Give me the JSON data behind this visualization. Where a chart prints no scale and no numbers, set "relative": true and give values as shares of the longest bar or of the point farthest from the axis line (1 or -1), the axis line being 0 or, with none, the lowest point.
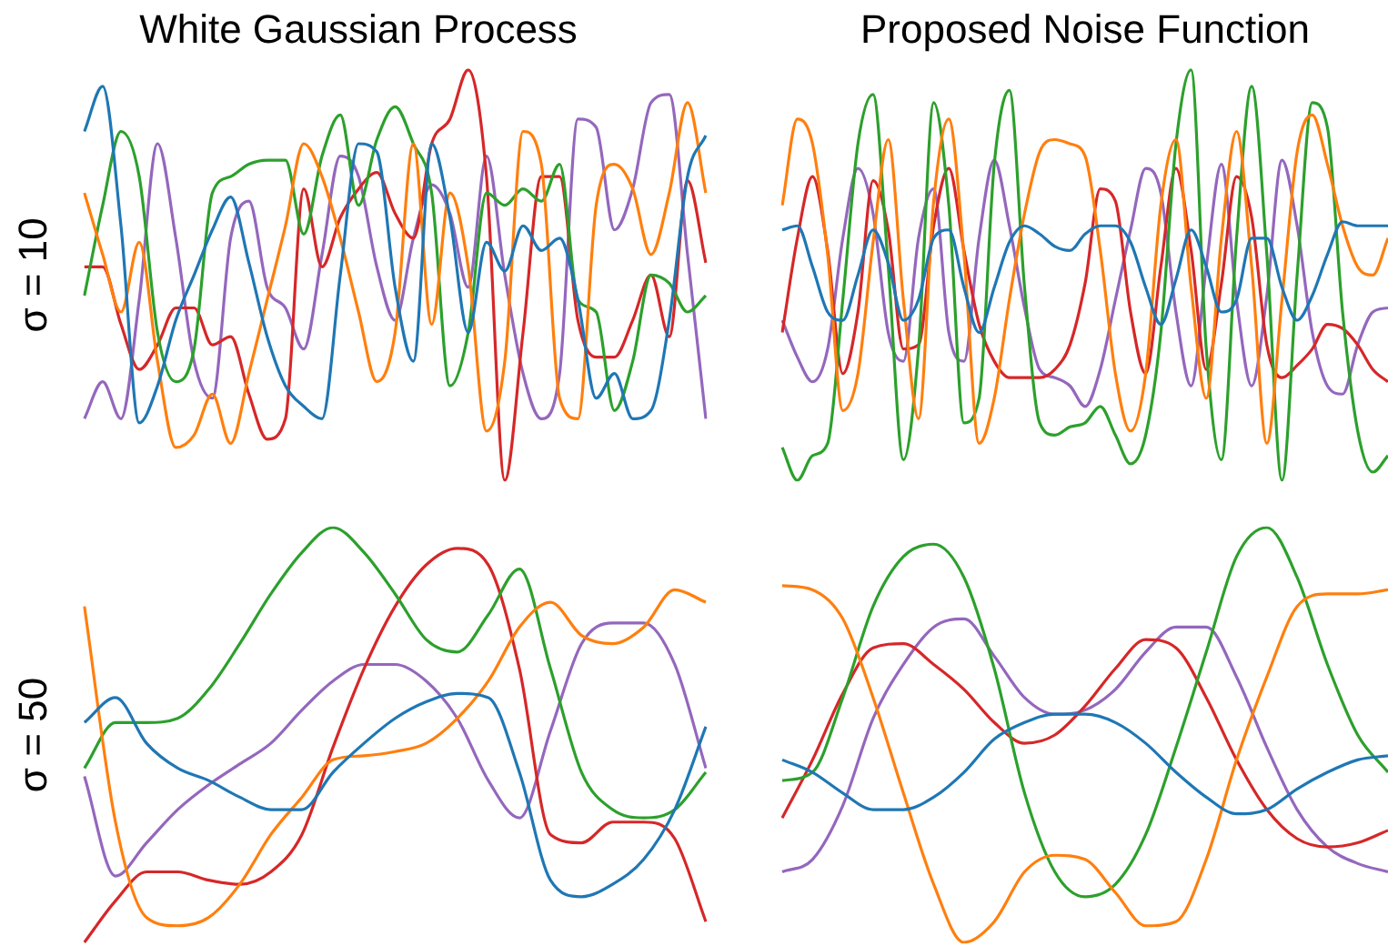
{
  "chart_data": [
    {
      "type": "line",
      "title": "White Gaussian Process",
      "ylabel": "σ = 10",
      "relative": true,
      "categories": [
        null,
        null,
        null,
        null,
        null,
        null,
        null,
        null,
        null,
        null,
        null,
        null,
        null,
        null,
        null,
        null,
        null,
        null,
        null,
        null,
        null,
        null,
        null,
        null,
        null,
        null,
        null,
        null,
        null,
        null,
        null,
        null,
        null,
        null,
        null
      ],
      "series": [
        {
          "color": "#1f77b4",
          "values": [
            0.85,
            0.96,
            0.62,
            0.14,
            0.23,
            0.39,
            0.5,
            0.61,
            0.69,
            0.53,
            0.35,
            0.23,
            0.18,
            0.15,
            0.5,
            0.82,
            0.8,
            0.47,
            0.29,
            0.82,
            0.64,
            0.36,
            0.58,
            0.51,
            0.62,
            0.56,
            0.59,
            0.44,
            0.2,
            0.26,
            0.15,
            0.17,
            0.39,
            0.74,
            0.84
          ]
        },
        {
          "color": "#ff7f0e",
          "values": [
            0.7,
            0.55,
            0.41,
            0.58,
            0.29,
            0.08,
            0.11,
            0.21,
            0.09,
            0.26,
            0.44,
            0.62,
            0.82,
            0.74,
            0.59,
            0.41,
            0.24,
            0.36,
            0.82,
            0.38,
            0.7,
            0.52,
            0.12,
            0.29,
            0.85,
            0.77,
            0.2,
            0.15,
            0.67,
            0.77,
            0.71,
            0.55,
            0.7,
            0.92,
            0.7
          ]
        },
        {
          "color": "#2ca02c",
          "values": [
            0.45,
            0.67,
            0.85,
            0.74,
            0.36,
            0.24,
            0.32,
            0.7,
            0.74,
            0.77,
            0.78,
            0.78,
            0.6,
            0.79,
            0.89,
            0.67,
            0.83,
            0.91,
            0.82,
            0.7,
            0.23,
            0.36,
            0.7,
            0.67,
            0.71,
            0.68,
            0.77,
            0.44,
            0.41,
            0.17,
            0.29,
            0.5,
            0.48,
            0.41,
            0.45
          ]
        },
        {
          "color": "#d62728",
          "values": [
            0.52,
            0.52,
            0.38,
            0.27,
            0.33,
            0.42,
            0.42,
            0.33,
            0.35,
            0.21,
            0.1,
            0.15,
            0.71,
            0.52,
            0.64,
            0.71,
            0.75,
            0.65,
            0.59,
            0.82,
            0.88,
            1.0,
            0.74,
            0.0,
            0.36,
            0.74,
            0.74,
            0.39,
            0.3,
            0.3,
            0.39,
            0.5,
            0.35,
            0.73,
            0.53
          ]
        },
        {
          "color": "#9467bd",
          "values": [
            0.15,
            0.24,
            0.15,
            0.44,
            0.82,
            0.59,
            0.29,
            0.2,
            0.59,
            0.68,
            0.47,
            0.42,
            0.32,
            0.55,
            0.79,
            0.74,
            0.52,
            0.39,
            0.59,
            0.72,
            0.65,
            0.47,
            0.79,
            0.5,
            0.26,
            0.15,
            0.26,
            0.88,
            0.86,
            0.61,
            0.71,
            0.92,
            0.94,
            0.55,
            0.15
          ]
        }
      ]
    },
    {
      "type": "line",
      "title": "Proposed Noise Function",
      "relative": true,
      "categories": [
        null,
        null,
        null,
        null,
        null,
        null,
        null,
        null,
        null,
        null,
        null,
        null,
        null,
        null,
        null,
        null,
        null,
        null,
        null,
        null,
        null,
        null,
        null,
        null,
        null,
        null,
        null,
        null,
        null,
        null,
        null,
        null,
        null,
        null,
        null,
        null,
        null,
        null,
        null,
        null,
        null
      ],
      "series": [
        {
          "color": "#1f77b4",
          "values": [
            0.61,
            0.62,
            0.52,
            0.41,
            0.39,
            0.5,
            0.61,
            0.53,
            0.39,
            0.44,
            0.59,
            0.61,
            0.47,
            0.36,
            0.47,
            0.58,
            0.62,
            0.6,
            0.57,
            0.56,
            0.6,
            0.62,
            0.62,
            0.58,
            0.47,
            0.38,
            0.49,
            0.61,
            0.52,
            0.41,
            0.44,
            0.59,
            0.59,
            0.47,
            0.39,
            0.45,
            0.55,
            0.63,
            0.62,
            0.62,
            0.62
          ]
        },
        {
          "color": "#ff7f0e",
          "values": [
            0.67,
            0.88,
            0.82,
            0.55,
            0.17,
            0.26,
            0.58,
            0.83,
            0.44,
            0.15,
            0.68,
            0.88,
            0.55,
            0.09,
            0.2,
            0.44,
            0.65,
            0.8,
            0.83,
            0.82,
            0.79,
            0.56,
            0.26,
            0.12,
            0.26,
            0.67,
            0.83,
            0.47,
            0.2,
            0.59,
            0.85,
            0.52,
            0.09,
            0.44,
            0.8,
            0.89,
            0.77,
            0.62,
            0.52,
            0.5,
            0.59
          ]
        },
        {
          "color": "#2ca02c",
          "values": [
            0.08,
            0.0,
            0.06,
            0.09,
            0.44,
            0.82,
            0.94,
            0.52,
            0.05,
            0.32,
            0.92,
            0.67,
            0.14,
            0.2,
            0.77,
            0.95,
            0.47,
            0.14,
            0.11,
            0.13,
            0.14,
            0.18,
            0.11,
            0.04,
            0.11,
            0.36,
            0.82,
            1.0,
            0.32,
            0.05,
            0.59,
            0.96,
            0.55,
            0.0,
            0.5,
            0.92,
            0.86,
            0.41,
            0.12,
            0.02,
            0.06
          ]
        },
        {
          "color": "#d62728",
          "values": [
            0.36,
            0.59,
            0.74,
            0.56,
            0.26,
            0.41,
            0.73,
            0.61,
            0.32,
            0.33,
            0.62,
            0.76,
            0.56,
            0.38,
            0.29,
            0.25,
            0.25,
            0.25,
            0.27,
            0.33,
            0.48,
            0.71,
            0.68,
            0.41,
            0.26,
            0.52,
            0.76,
            0.56,
            0.27,
            0.48,
            0.74,
            0.64,
            0.33,
            0.25,
            0.28,
            0.32,
            0.38,
            0.37,
            0.33,
            0.27,
            0.24
          ]
        },
        {
          "color": "#9467bd",
          "values": [
            0.39,
            0.3,
            0.24,
            0.32,
            0.59,
            0.76,
            0.65,
            0.36,
            0.29,
            0.59,
            0.71,
            0.36,
            0.29,
            0.59,
            0.78,
            0.62,
            0.42,
            0.27,
            0.25,
            0.23,
            0.18,
            0.27,
            0.44,
            0.61,
            0.76,
            0.7,
            0.41,
            0.23,
            0.52,
            0.77,
            0.44,
            0.23,
            0.45,
            0.78,
            0.62,
            0.36,
            0.23,
            0.21,
            0.33,
            0.41,
            0.42
          ]
        }
      ]
    },
    {
      "type": "line",
      "ylabel": "σ = 50",
      "relative": true,
      "categories": [
        null,
        null,
        null,
        null,
        null,
        null,
        null,
        null,
        null,
        null,
        null,
        null,
        null,
        null,
        null,
        null,
        null,
        null,
        null,
        null,
        null
      ],
      "series": [
        {
          "color": "#1f77b4",
          "values": [
            0.53,
            0.59,
            0.48,
            0.42,
            0.39,
            0.35,
            0.32,
            0.32,
            0.41,
            0.48,
            0.54,
            0.58,
            0.6,
            0.59,
            0.41,
            0.15,
            0.11,
            0.14,
            0.2,
            0.32,
            0.52
          ]
        },
        {
          "color": "#ff7f0e",
          "values": [
            0.81,
            0.29,
            0.06,
            0.04,
            0.06,
            0.14,
            0.26,
            0.35,
            0.44,
            0.45,
            0.46,
            0.48,
            0.54,
            0.63,
            0.76,
            0.82,
            0.74,
            0.72,
            0.76,
            0.85,
            0.82
          ]
        },
        {
          "color": "#2ca02c",
          "values": [
            0.42,
            0.53,
            0.53,
            0.54,
            0.61,
            0.72,
            0.84,
            0.94,
            1.0,
            0.94,
            0.84,
            0.73,
            0.7,
            0.79,
            0.9,
            0.66,
            0.41,
            0.32,
            0.3,
            0.32,
            0.41
          ]
        },
        {
          "color": "#d62728",
          "values": [
            0.0,
            0.1,
            0.17,
            0.17,
            0.15,
            0.14,
            0.17,
            0.26,
            0.47,
            0.66,
            0.81,
            0.91,
            0.95,
            0.91,
            0.66,
            0.26,
            0.24,
            0.29,
            0.29,
            0.25,
            0.05
          ]
        },
        {
          "color": "#9467bd",
          "values": [
            0.4,
            0.16,
            0.24,
            0.32,
            0.38,
            0.43,
            0.48,
            0.56,
            0.63,
            0.67,
            0.67,
            0.63,
            0.54,
            0.39,
            0.3,
            0.51,
            0.72,
            0.77,
            0.77,
            0.67,
            0.42
          ]
        }
      ]
    },
    {
      "type": "line",
      "relative": true,
      "categories": [
        null,
        null,
        null,
        null,
        null,
        null,
        null,
        null,
        null,
        null,
        null,
        null,
        null,
        null,
        null,
        null,
        null,
        null,
        null,
        null,
        null
      ],
      "series": [
        {
          "color": "#1f77b4",
          "values": [
            0.44,
            0.41,
            0.36,
            0.32,
            0.32,
            0.35,
            0.41,
            0.49,
            0.53,
            0.55,
            0.55,
            0.53,
            0.48,
            0.41,
            0.35,
            0.31,
            0.32,
            0.37,
            0.41,
            0.44,
            0.45
          ]
        },
        {
          "color": "#ff7f0e",
          "values": [
            0.86,
            0.85,
            0.78,
            0.59,
            0.36,
            0.14,
            0.0,
            0.05,
            0.17,
            0.21,
            0.2,
            0.12,
            0.04,
            0.05,
            0.2,
            0.44,
            0.64,
            0.81,
            0.84,
            0.84,
            0.85
          ]
        },
        {
          "color": "#2ca02c",
          "values": [
            0.39,
            0.41,
            0.59,
            0.81,
            0.93,
            0.96,
            0.88,
            0.66,
            0.36,
            0.17,
            0.11,
            0.14,
            0.26,
            0.47,
            0.7,
            0.93,
            1.0,
            0.88,
            0.67,
            0.5,
            0.41
          ]
        },
        {
          "color": "#d62728",
          "values": [
            0.3,
            0.44,
            0.6,
            0.71,
            0.72,
            0.67,
            0.61,
            0.53,
            0.48,
            0.5,
            0.57,
            0.66,
            0.73,
            0.71,
            0.59,
            0.44,
            0.32,
            0.25,
            0.23,
            0.24,
            0.27
          ]
        },
        {
          "color": "#9467bd",
          "values": [
            0.17,
            0.2,
            0.33,
            0.54,
            0.67,
            0.76,
            0.78,
            0.69,
            0.59,
            0.55,
            0.56,
            0.61,
            0.7,
            0.76,
            0.76,
            0.64,
            0.47,
            0.32,
            0.23,
            0.19,
            0.17
          ]
        }
      ]
    }
  ]
}
